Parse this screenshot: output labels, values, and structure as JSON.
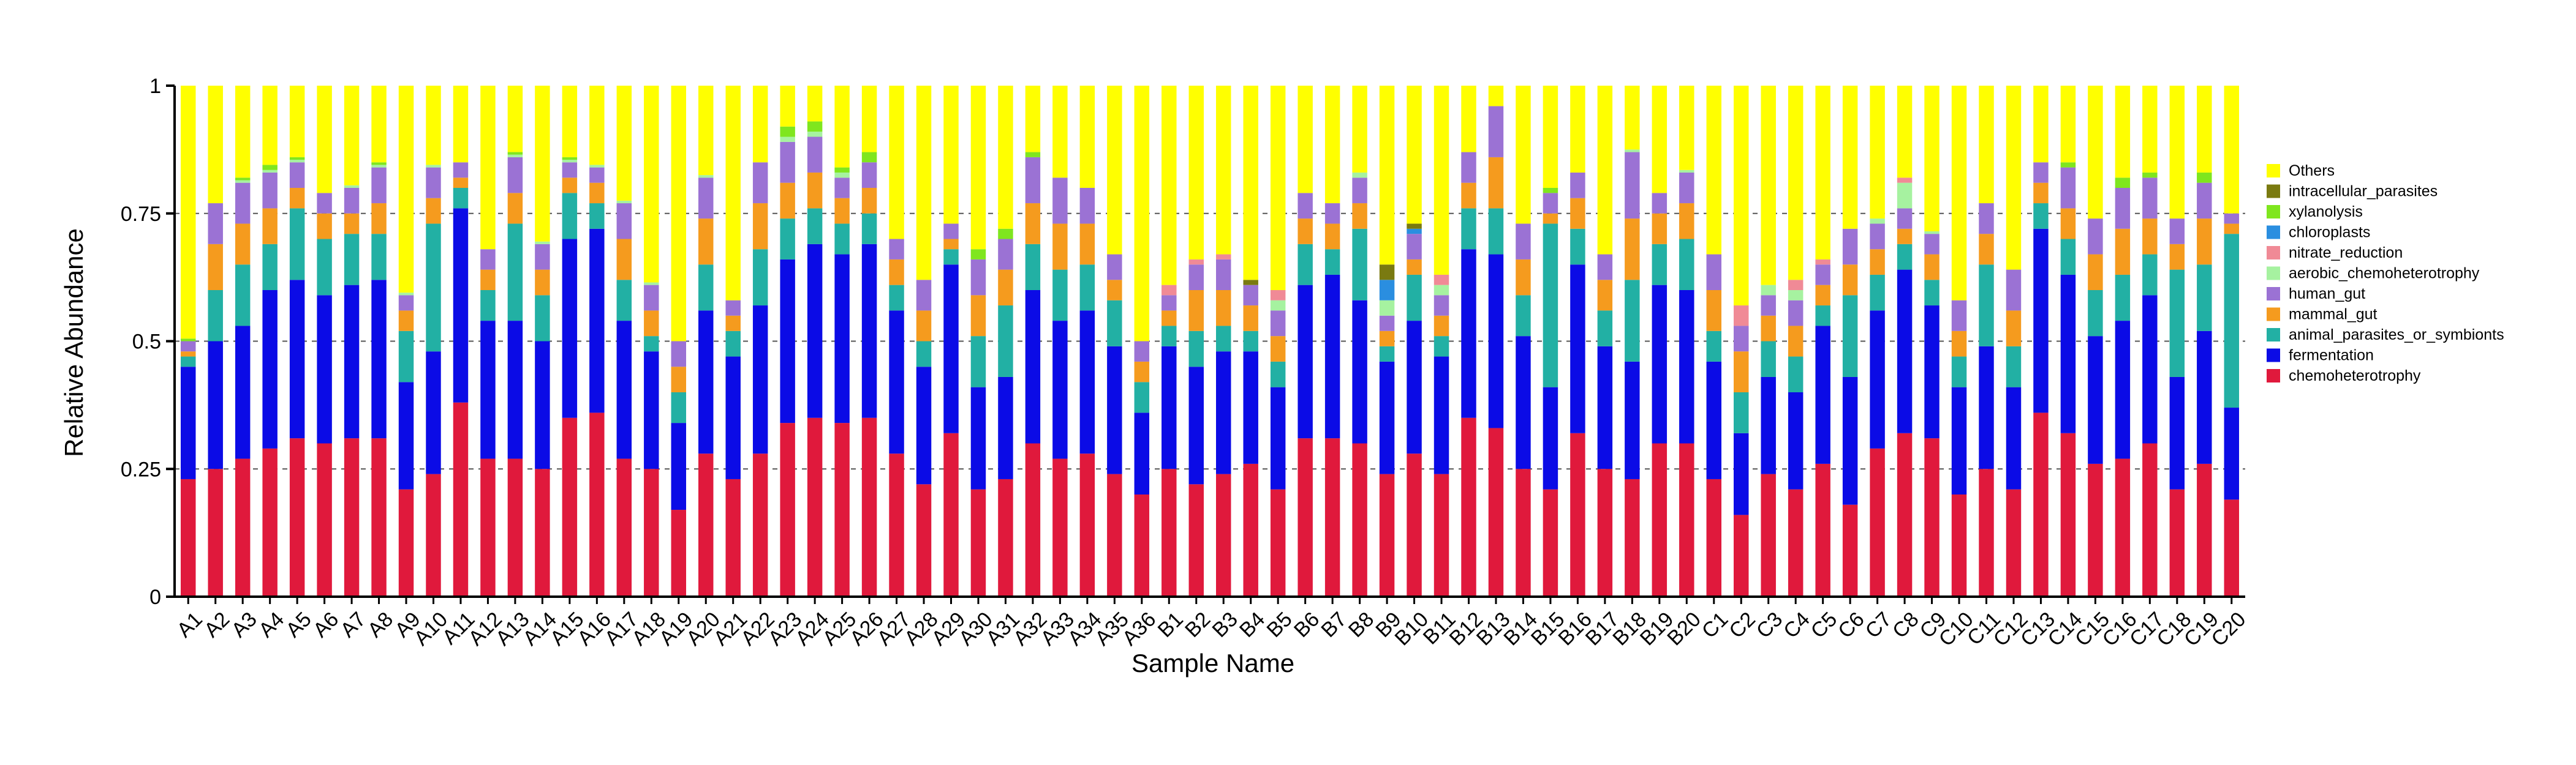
{
  "chart_data": {
    "type": "bar",
    "stacked": true,
    "title": "",
    "xlabel": "Sample Name",
    "ylabel": "Relative Abundance",
    "ylim": [
      0,
      1
    ],
    "yticks": [
      0,
      0.25,
      0.5,
      0.75,
      1
    ],
    "ytick_labels": [
      "0",
      "0.25",
      "0.5",
      "0.75",
      "1"
    ],
    "grid": "dashed horizontal at 0.25, 0.5, 0.75",
    "legend_position": "right",
    "categories": [
      "A1",
      "A2",
      "A3",
      "A4",
      "A5",
      "A6",
      "A7",
      "A8",
      "A9",
      "A10",
      "A11",
      "A12",
      "A13",
      "A14",
      "A15",
      "A16",
      "A17",
      "A18",
      "A19",
      "A20",
      "A21",
      "A22",
      "A23",
      "A24",
      "A25",
      "A26",
      "A27",
      "A28",
      "A29",
      "A30",
      "A31",
      "A32",
      "A33",
      "A34",
      "A35",
      "A36",
      "B1",
      "B2",
      "B3",
      "B4",
      "B5",
      "B6",
      "B7",
      "B8",
      "B9",
      "B10",
      "B11",
      "B12",
      "B13",
      "B14",
      "B15",
      "B16",
      "B17",
      "B18",
      "B19",
      "B20",
      "C1",
      "C2",
      "C3",
      "C4",
      "C5",
      "C6",
      "C7",
      "C8",
      "C9",
      "C10",
      "C11",
      "C12",
      "C13",
      "C14",
      "C15",
      "C16",
      "C17",
      "C18",
      "C19",
      "C20"
    ],
    "series": [
      {
        "name": "chemoheterotrophy",
        "color": "#e0193c",
        "values": [
          0.23,
          0.25,
          0.27,
          0.29,
          0.31,
          0.3,
          0.31,
          0.31,
          0.21,
          0.24,
          0.38,
          0.27,
          0.27,
          0.25,
          0.35,
          0.36,
          0.27,
          0.25,
          0.17,
          0.28,
          0.23,
          0.28,
          0.34,
          0.35,
          0.34,
          0.35,
          0.28,
          0.22,
          0.32,
          0.21,
          0.23,
          0.3,
          0.27,
          0.28,
          0.24,
          0.2,
          0.25,
          0.22,
          0.24,
          0.26,
          0.21,
          0.31,
          0.31,
          0.3,
          0.24,
          0.28,
          0.24,
          0.35,
          0.33,
          0.25,
          0.21,
          0.32,
          0.25,
          0.23,
          0.3,
          0.3,
          0.23,
          0.16,
          0.24,
          0.21,
          0.26,
          0.18,
          0.29,
          0.32,
          0.31,
          0.2,
          0.25,
          0.21,
          0.36,
          0.32,
          0.26,
          0.27,
          0.3,
          0.21,
          0.26,
          0.19
        ]
      },
      {
        "name": "fermentation",
        "color": "#0b0be6",
        "values": [
          0.22,
          0.25,
          0.26,
          0.31,
          0.31,
          0.29,
          0.3,
          0.31,
          0.21,
          0.24,
          0.38,
          0.27,
          0.27,
          0.25,
          0.35,
          0.36,
          0.27,
          0.23,
          0.17,
          0.28,
          0.24,
          0.29,
          0.32,
          0.34,
          0.33,
          0.34,
          0.28,
          0.23,
          0.33,
          0.2,
          0.2,
          0.3,
          0.27,
          0.28,
          0.25,
          0.16,
          0.24,
          0.23,
          0.24,
          0.22,
          0.2,
          0.3,
          0.32,
          0.28,
          0.22,
          0.26,
          0.23,
          0.33,
          0.34,
          0.26,
          0.2,
          0.33,
          0.24,
          0.23,
          0.31,
          0.3,
          0.23,
          0.16,
          0.19,
          0.19,
          0.27,
          0.25,
          0.27,
          0.32,
          0.26,
          0.21,
          0.24,
          0.2,
          0.36,
          0.31,
          0.25,
          0.27,
          0.29,
          0.22,
          0.26,
          0.18
        ]
      },
      {
        "name": "animal_parasites_or_symbionts",
        "color": "#22b0a4",
        "values": [
          0.02,
          0.1,
          0.12,
          0.09,
          0.14,
          0.11,
          0.1,
          0.09,
          0.1,
          0.25,
          0.04,
          0.06,
          0.19,
          0.09,
          0.09,
          0.05,
          0.08,
          0.03,
          0.06,
          0.09,
          0.05,
          0.11,
          0.08,
          0.07,
          0.06,
          0.06,
          0.05,
          0.05,
          0.03,
          0.1,
          0.14,
          0.09,
          0.1,
          0.09,
          0.09,
          0.06,
          0.04,
          0.07,
          0.05,
          0.04,
          0.05,
          0.08,
          0.05,
          0.14,
          0.03,
          0.09,
          0.04,
          0.08,
          0.09,
          0.08,
          0.32,
          0.07,
          0.07,
          0.16,
          0.08,
          0.1,
          0.06,
          0.08,
          0.07,
          0.07,
          0.04,
          0.16,
          0.07,
          0.05,
          0.05,
          0.06,
          0.16,
          0.08,
          0.05,
          0.07,
          0.09,
          0.09,
          0.08,
          0.21,
          0.13,
          0.34
        ]
      },
      {
        "name": "mammal_gut",
        "color": "#f59b1e",
        "values": [
          0.01,
          0.09,
          0.08,
          0.07,
          0.04,
          0.05,
          0.04,
          0.06,
          0.04,
          0.05,
          0.02,
          0.04,
          0.06,
          0.05,
          0.03,
          0.04,
          0.08,
          0.05,
          0.05,
          0.09,
          0.03,
          0.09,
          0.07,
          0.07,
          0.05,
          0.05,
          0.05,
          0.06,
          0.02,
          0.08,
          0.07,
          0.08,
          0.09,
          0.08,
          0.04,
          0.04,
          0.03,
          0.08,
          0.07,
          0.05,
          0.05,
          0.05,
          0.05,
          0.05,
          0.03,
          0.03,
          0.04,
          0.05,
          0.1,
          0.07,
          0.02,
          0.06,
          0.06,
          0.12,
          0.06,
          0.07,
          0.08,
          0.08,
          0.05,
          0.06,
          0.04,
          0.06,
          0.05,
          0.03,
          0.05,
          0.05,
          0.06,
          0.07,
          0.04,
          0.06,
          0.07,
          0.09,
          0.07,
          0.05,
          0.09,
          0.02
        ]
      },
      {
        "name": "human_gut",
        "color": "#9b72d4",
        "values": [
          0.02,
          0.08,
          0.08,
          0.07,
          0.05,
          0.04,
          0.05,
          0.07,
          0.03,
          0.06,
          0.03,
          0.04,
          0.07,
          0.05,
          0.03,
          0.03,
          0.07,
          0.05,
          0.05,
          0.08,
          0.03,
          0.08,
          0.08,
          0.07,
          0.04,
          0.05,
          0.04,
          0.06,
          0.03,
          0.07,
          0.06,
          0.09,
          0.09,
          0.07,
          0.05,
          0.04,
          0.03,
          0.05,
          0.06,
          0.04,
          0.05,
          0.05,
          0.04,
          0.05,
          0.03,
          0.05,
          0.04,
          0.06,
          0.1,
          0.07,
          0.04,
          0.05,
          0.05,
          0.13,
          0.04,
          0.06,
          0.07,
          0.05,
          0.04,
          0.05,
          0.04,
          0.07,
          0.05,
          0.04,
          0.04,
          0.06,
          0.06,
          0.08,
          0.04,
          0.08,
          0.07,
          0.08,
          0.08,
          0.05,
          0.07,
          0.02
        ]
      },
      {
        "name": "aerobic_chemoheterotrophy",
        "color": "#a6f2a0",
        "values": [
          0.0,
          0.0,
          0.005,
          0.005,
          0.005,
          0.0,
          0.005,
          0.005,
          0.005,
          0.005,
          0.0,
          0.0,
          0.005,
          0.005,
          0.005,
          0.005,
          0.005,
          0.005,
          0.0,
          0.005,
          0.0,
          0.0,
          0.01,
          0.01,
          0.01,
          0.0,
          0.0,
          0.0,
          0.0,
          0.0,
          0.0,
          0.0,
          0.0,
          0.0,
          0.0,
          0.0,
          0.0,
          0.0,
          0.0,
          0.0,
          0.02,
          0.0,
          0.0,
          0.01,
          0.03,
          0.0,
          0.02,
          0.0,
          0.0,
          0.0,
          0.0,
          0.0,
          0.0,
          0.005,
          0.0,
          0.005,
          0.0,
          0.0,
          0.02,
          0.02,
          0.0,
          0.0,
          0.01,
          0.05,
          0.005,
          0.0,
          0.0,
          0.0,
          0.0,
          0.0,
          0.0,
          0.0,
          0.0,
          0.0,
          0.0,
          0.0
        ]
      },
      {
        "name": "nitrate_reduction",
        "color": "#f08a96",
        "values": [
          0.0,
          0.0,
          0.0,
          0.0,
          0.0,
          0.0,
          0.0,
          0.0,
          0.0,
          0.0,
          0.0,
          0.0,
          0.0,
          0.0,
          0.0,
          0.0,
          0.0,
          0.0,
          0.0,
          0.0,
          0.0,
          0.0,
          0.0,
          0.0,
          0.0,
          0.0,
          0.0,
          0.0,
          0.0,
          0.0,
          0.0,
          0.0,
          0.0,
          0.0,
          0.0,
          0.0,
          0.02,
          0.01,
          0.01,
          0.0,
          0.02,
          0.0,
          0.0,
          0.0,
          0.0,
          0.0,
          0.02,
          0.0,
          0.0,
          0.0,
          0.0,
          0.0,
          0.0,
          0.0,
          0.0,
          0.0,
          0.0,
          0.04,
          0.0,
          0.02,
          0.01,
          0.0,
          0.0,
          0.01,
          0.0,
          0.0,
          0.0,
          0.0,
          0.0,
          0.0,
          0.0,
          0.0,
          0.0,
          0.0,
          0.0,
          0.0
        ]
      },
      {
        "name": "chloroplasts",
        "color": "#2a8ee0",
        "values": [
          0.0,
          0.0,
          0.0,
          0.0,
          0.0,
          0.0,
          0.0,
          0.0,
          0.0,
          0.0,
          0.0,
          0.0,
          0.0,
          0.0,
          0.0,
          0.0,
          0.0,
          0.0,
          0.0,
          0.0,
          0.0,
          0.0,
          0.0,
          0.0,
          0.0,
          0.0,
          0.0,
          0.0,
          0.0,
          0.0,
          0.0,
          0.0,
          0.0,
          0.0,
          0.0,
          0.0,
          0.0,
          0.0,
          0.0,
          0.0,
          0.0,
          0.0,
          0.0,
          0.0,
          0.04,
          0.01,
          0.0,
          0.0,
          0.0,
          0.0,
          0.0,
          0.0,
          0.0,
          0.0,
          0.0,
          0.0,
          0.0,
          0.0,
          0.0,
          0.0,
          0.0,
          0.0,
          0.0,
          0.0,
          0.0,
          0.0,
          0.0,
          0.0,
          0.0,
          0.0,
          0.0,
          0.0,
          0.0,
          0.0,
          0.0,
          0.0
        ]
      },
      {
        "name": "xylanolysis",
        "color": "#7fe61e",
        "values": [
          0.005,
          0.0,
          0.005,
          0.01,
          0.005,
          0.0,
          0.0,
          0.005,
          0.0,
          0.0,
          0.0,
          0.0,
          0.005,
          0.0,
          0.005,
          0.0,
          0.0,
          0.0,
          0.0,
          0.0,
          0.0,
          0.0,
          0.02,
          0.02,
          0.01,
          0.02,
          0.0,
          0.0,
          0.0,
          0.02,
          0.02,
          0.01,
          0.0,
          0.0,
          0.0,
          0.0,
          0.0,
          0.0,
          0.0,
          0.0,
          0.0,
          0.0,
          0.0,
          0.0,
          0.0,
          0.0,
          0.0,
          0.0,
          0.0,
          0.0,
          0.01,
          0.0,
          0.0,
          0.0,
          0.0,
          0.0,
          0.0,
          0.0,
          0.0,
          0.0,
          0.0,
          0.0,
          0.0,
          0.0,
          0.0,
          0.0,
          0.0,
          0.0,
          0.0,
          0.01,
          0.0,
          0.02,
          0.01,
          0.0,
          0.02,
          0.0
        ]
      },
      {
        "name": "intracellular_parasites",
        "color": "#7a7a10",
        "values": [
          0.0,
          0.0,
          0.0,
          0.0,
          0.0,
          0.0,
          0.0,
          0.0,
          0.0,
          0.0,
          0.0,
          0.0,
          0.0,
          0.0,
          0.0,
          0.0,
          0.0,
          0.0,
          0.0,
          0.0,
          0.0,
          0.0,
          0.0,
          0.0,
          0.0,
          0.0,
          0.0,
          0.0,
          0.0,
          0.0,
          0.0,
          0.0,
          0.0,
          0.0,
          0.0,
          0.0,
          0.0,
          0.0,
          0.0,
          0.01,
          0.0,
          0.0,
          0.0,
          0.0,
          0.03,
          0.01,
          0.0,
          0.0,
          0.0,
          0.0,
          0.0,
          0.0,
          0.0,
          0.0,
          0.0,
          0.0,
          0.0,
          0.0,
          0.0,
          0.0,
          0.0,
          0.0,
          0.0,
          0.0,
          0.0,
          0.0,
          0.0,
          0.0,
          0.0,
          0.0,
          0.0,
          0.0,
          0.0,
          0.0,
          0.0,
          0.0
        ]
      },
      {
        "name": "Others",
        "color": "#ffff00",
        "values": "remainder_to_1"
      }
    ]
  }
}
